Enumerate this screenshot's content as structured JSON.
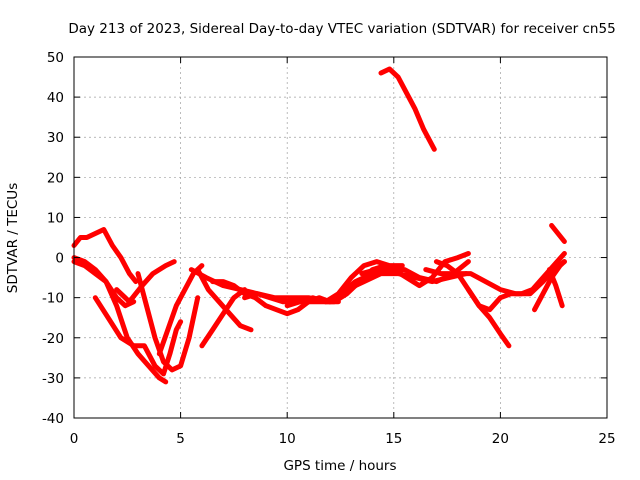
{
  "chart_data": {
    "type": "line",
    "title": "Day 213 of 2023, Sidereal Day-to-day VTEC variation (SDTVAR) for receiver cn55",
    "xlabel": "GPS time / hours",
    "ylabel": "SDTVAR / TECUs",
    "xlim": [
      0,
      25
    ],
    "ylim": [
      -40,
      50
    ],
    "xticks": [
      0,
      5,
      10,
      15,
      20,
      25
    ],
    "yticks": [
      -40,
      -30,
      -20,
      -10,
      0,
      10,
      20,
      30,
      40,
      50
    ],
    "grid": true,
    "legend": "none",
    "series_color": "#ff0000",
    "series": [
      {
        "name": "s1",
        "x": [
          0.0,
          0.3,
          0.6,
          1.0,
          1.4,
          1.8,
          2.2,
          2.6,
          2.9
        ],
        "y": [
          3,
          5,
          5,
          6,
          7,
          3,
          0,
          -4,
          -6
        ]
      },
      {
        "name": "s2",
        "x": [
          0.0,
          0.5,
          1.0,
          1.5,
          2.0,
          2.5,
          3.0,
          3.5,
          4.0,
          4.3
        ],
        "y": [
          0,
          -1,
          -3,
          -6,
          -12,
          -20,
          -24,
          -27,
          -30,
          -31
        ]
      },
      {
        "name": "s3",
        "x": [
          0.0,
          0.5,
          1.0,
          1.5,
          2.0,
          2.4,
          2.8
        ],
        "y": [
          -1,
          -2,
          -4,
          -6,
          -10,
          -12,
          -11
        ]
      },
      {
        "name": "s4",
        "x": [
          1.0,
          1.6,
          2.2,
          2.8,
          3.3,
          3.8,
          4.2,
          4.5,
          4.8,
          5.0
        ],
        "y": [
          -10,
          -15,
          -20,
          -22,
          -22,
          -27,
          -29,
          -24,
          -18,
          -16
        ]
      },
      {
        "name": "s5",
        "x": [
          2.0,
          2.6,
          3.2,
          3.7,
          4.0,
          4.3,
          4.7
        ],
        "y": [
          -8,
          -11,
          -7,
          -4,
          -3,
          -2,
          -1
        ]
      },
      {
        "name": "s6",
        "x": [
          3.0,
          3.4,
          3.8,
          4.2,
          4.6,
          5.0,
          5.4,
          5.8
        ],
        "y": [
          -4,
          -12,
          -20,
          -26,
          -28,
          -27,
          -20,
          -10
        ]
      },
      {
        "name": "s7",
        "x": [
          4.0,
          4.4,
          4.8,
          5.2,
          5.6,
          6.0
        ],
        "y": [
          -24,
          -18,
          -12,
          -8,
          -4,
          -2
        ]
      },
      {
        "name": "s8",
        "x": [
          5.8,
          6.3,
          6.8,
          7.3,
          7.8,
          8.3
        ],
        "y": [
          -3,
          -8,
          -11,
          -14,
          -17,
          -18
        ]
      },
      {
        "name": "s9",
        "x": [
          6.0,
          6.5,
          7.0,
          7.5,
          8.0
        ],
        "y": [
          -22,
          -18,
          -14,
          -10,
          -8
        ]
      },
      {
        "name": "s10",
        "x": [
          6.5,
          7.0,
          7.5,
          8.0,
          8.5,
          9.0,
          9.5,
          10.0,
          10.5,
          11.0,
          11.5,
          12.0
        ],
        "y": [
          -6,
          -6,
          -7,
          -9,
          -10,
          -12,
          -13,
          -14,
          -13,
          -11,
          -10,
          -11
        ]
      },
      {
        "name": "s11",
        "x": [
          5.5,
          6.2,
          7.0,
          7.8,
          8.6,
          9.4,
          10.2,
          11.0,
          11.8,
          12.4
        ],
        "y": [
          -3,
          -5,
          -7,
          -8,
          -9,
          -10,
          -10,
          -10,
          -11,
          -11
        ]
      },
      {
        "name": "s12",
        "x": [
          8.0,
          8.6,
          9.2,
          9.8,
          10.4,
          11.0,
          11.6,
          12.2,
          12.8,
          13.4,
          14.0,
          14.6
        ],
        "y": [
          -10,
          -9,
          -10,
          -11,
          -11,
          -11,
          -11,
          -11,
          -9,
          -6,
          -3,
          -2
        ]
      },
      {
        "name": "s13",
        "x": [
          10.0,
          10.6,
          11.2,
          11.8,
          12.4,
          13.0,
          13.6,
          14.2,
          14.8,
          15.4
        ],
        "y": [
          -12,
          -11,
          -10,
          -11,
          -9,
          -5,
          -2,
          -1,
          -2,
          -2
        ]
      },
      {
        "name": "s14",
        "x": [
          12.0,
          12.8,
          13.6,
          14.4,
          15.2,
          16.0,
          16.8,
          17.6,
          18.4
        ],
        "y": [
          -11,
          -8,
          -6,
          -4,
          -4,
          -5,
          -6,
          -5,
          -4
        ]
      },
      {
        "name": "s15",
        "x": [
          12.5,
          13.2,
          14.0,
          14.8,
          15.5,
          16.2,
          17.0,
          17.8,
          18.5
        ],
        "y": [
          -9,
          -6,
          -4,
          -3,
          -3,
          -5,
          -6,
          -4,
          -1
        ]
      },
      {
        "name": "s16",
        "x": [
          13.5,
          14.2,
          15.0,
          15.6,
          16.2,
          16.8,
          17.4,
          18.0,
          18.5
        ],
        "y": [
          -4,
          -3,
          -3,
          -5,
          -7,
          -5,
          -1,
          0,
          1
        ]
      },
      {
        "name": "s17",
        "x": [
          14.4,
          14.8,
          15.2,
          15.6,
          16.0,
          16.4,
          16.9
        ],
        "y": [
          46,
          47,
          45,
          41,
          37,
          32,
          27
        ]
      },
      {
        "name": "s18",
        "x": [
          17.0,
          17.5,
          18.0,
          18.5,
          19.0,
          19.5,
          20.0,
          20.4
        ],
        "y": [
          -1,
          -2,
          -4,
          -8,
          -12,
          -15,
          -19,
          -22
        ]
      },
      {
        "name": "s19",
        "x": [
          16.5,
          17.2,
          17.9,
          18.6,
          19.3,
          20.0,
          20.7,
          21.4,
          22.0,
          22.5,
          23.0
        ],
        "y": [
          -3,
          -4,
          -4,
          -4,
          -6,
          -8,
          -9,
          -9,
          -6,
          -3,
          -1
        ]
      },
      {
        "name": "s20",
        "x": [
          18.5,
          19.0,
          19.5,
          20.0,
          20.5,
          21.0,
          21.5,
          22.0,
          22.5,
          23.0
        ],
        "y": [
          -8,
          -12,
          -13,
          -10,
          -9,
          -9,
          -8,
          -5,
          -2,
          1
        ]
      },
      {
        "name": "s21",
        "x": [
          21.6,
          22.0,
          22.4,
          22.8,
          23.0
        ],
        "y": [
          -13,
          -9,
          -5,
          -2,
          -1
        ]
      },
      {
        "name": "s22",
        "x": [
          22.3,
          22.6,
          22.9
        ],
        "y": [
          -3,
          -7,
          -12
        ]
      },
      {
        "name": "s23",
        "x": [
          22.4,
          22.7,
          23.0
        ],
        "y": [
          8,
          6,
          4
        ]
      }
    ]
  }
}
